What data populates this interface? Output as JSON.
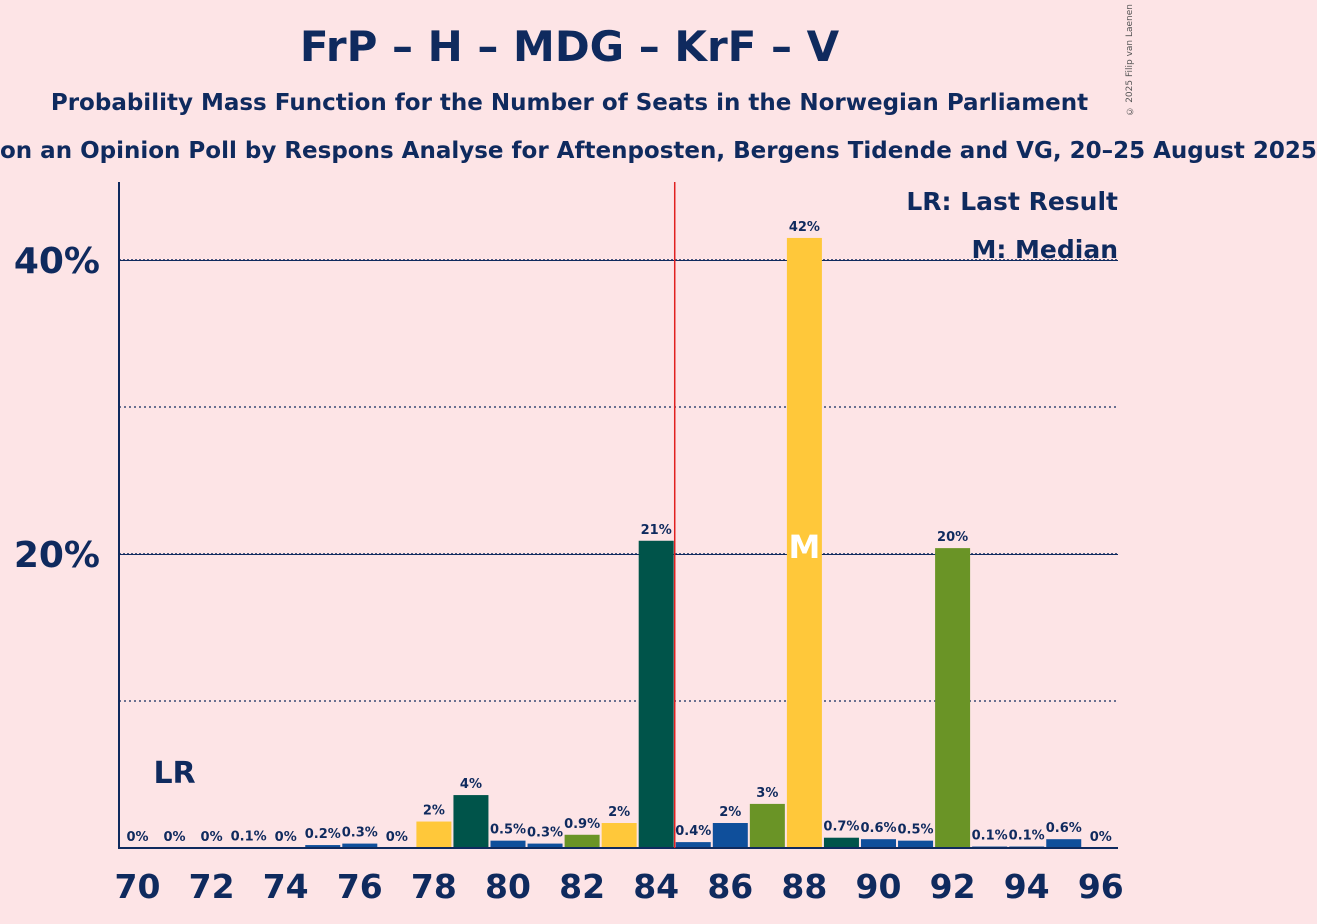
{
  "title": "FrP – H – MDG – KrF – V",
  "subtitle": "Probability Mass Function for the Number of Seats in the Norwegian Parliament",
  "subsubtitle": "on an Opinion Poll by Respons Analyse for Aftenposten, Bergens Tidende and VG, 20–25 August 2025",
  "copyright": "© 2025 Filip van Laenen",
  "legend": {
    "last_result": "LR: Last Result",
    "median": "M: Median"
  },
  "chart_data": {
    "type": "bar",
    "x": [
      70,
      71,
      72,
      73,
      74,
      75,
      76,
      77,
      78,
      79,
      80,
      81,
      82,
      83,
      84,
      85,
      86,
      87,
      88,
      89,
      90,
      91,
      92,
      93,
      94,
      95,
      96
    ],
    "values": [
      0,
      0,
      0,
      0.05,
      0,
      0.2,
      0.3,
      0,
      1.8,
      3.6,
      0.5,
      0.3,
      0.9,
      1.7,
      20.9,
      0.4,
      1.7,
      3.0,
      41.5,
      0.7,
      0.6,
      0.5,
      20.4,
      0.1,
      0.1,
      0.6,
      0
    ],
    "data_labels": [
      "0%",
      "0%",
      "0%",
      "0.1%",
      "0%",
      "0.2%",
      "0.3%",
      "0%",
      "2%",
      "4%",
      "0.5%",
      "0.3%",
      "0.9%",
      "2%",
      "21%",
      "0.4%",
      "2%",
      "3%",
      "42%",
      "0.7%",
      "0.6%",
      "0.5%",
      "20%",
      "0.1%",
      "0.1%",
      "0.6%",
      "0%"
    ],
    "colors": [
      "#0f4f9b",
      "#0f4f9b",
      "#0f4f9b",
      "#0f4f9b",
      "#0f4f9b",
      "#0f4f9b",
      "#0f4f9b",
      "#0f4f9b",
      "#ffc83a",
      "#00544a",
      "#0f4f9b",
      "#0f4f9b",
      "#6a9426",
      "#ffc83a",
      "#00544a",
      "#0f4f9b",
      "#0f4f9b",
      "#6a9426",
      "#ffc83a",
      "#00544a",
      "#0f4f9b",
      "#0f4f9b",
      "#6a9426",
      "#0f4f9b",
      "#0f4f9b",
      "#0f4f9b",
      "#0f4f9b"
    ],
    "x_ticks": [
      70,
      72,
      74,
      76,
      78,
      80,
      82,
      84,
      86,
      88,
      90,
      92,
      94,
      96
    ],
    "x_tick_labels": [
      "70",
      "72",
      "74",
      "76",
      "78",
      "80",
      "82",
      "84",
      "86",
      "88",
      "90",
      "92",
      "94",
      "96"
    ],
    "y_ticks_major": [
      20,
      40
    ],
    "y_tick_labels": [
      "20%",
      "40%"
    ],
    "y_ticks_minor": [
      10,
      30
    ],
    "ylim": [
      0,
      45
    ],
    "majority_line": 84.5,
    "last_result": 71,
    "last_result_label": "LR",
    "median": 88,
    "median_label": "M",
    "xlabel": "",
    "ylabel": ""
  }
}
